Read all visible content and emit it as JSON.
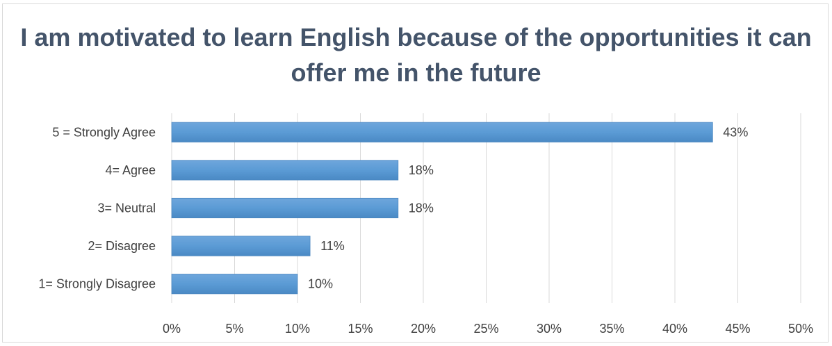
{
  "chart_data": {
    "type": "bar",
    "orientation": "horizontal",
    "title": "I am motivated to learn English because of the opportunities it can offer me in the future",
    "categories": [
      "5 = Strongly Agree",
      "4= Agree",
      "3= Neutral",
      "2= Disagree",
      "1= Strongly Disagree"
    ],
    "values": [
      43,
      18,
      18,
      11,
      10
    ],
    "value_labels": [
      "43%",
      "18%",
      "18%",
      "11%",
      "10%"
    ],
    "xlim": [
      0,
      50
    ],
    "x_ticks": [
      "0%",
      "5%",
      "10%",
      "15%",
      "20%",
      "25%",
      "30%",
      "35%",
      "40%",
      "45%",
      "50%"
    ],
    "xlabel": "",
    "ylabel": "",
    "grid": true,
    "legend": "none",
    "bar_color": "#5b9bd5"
  }
}
